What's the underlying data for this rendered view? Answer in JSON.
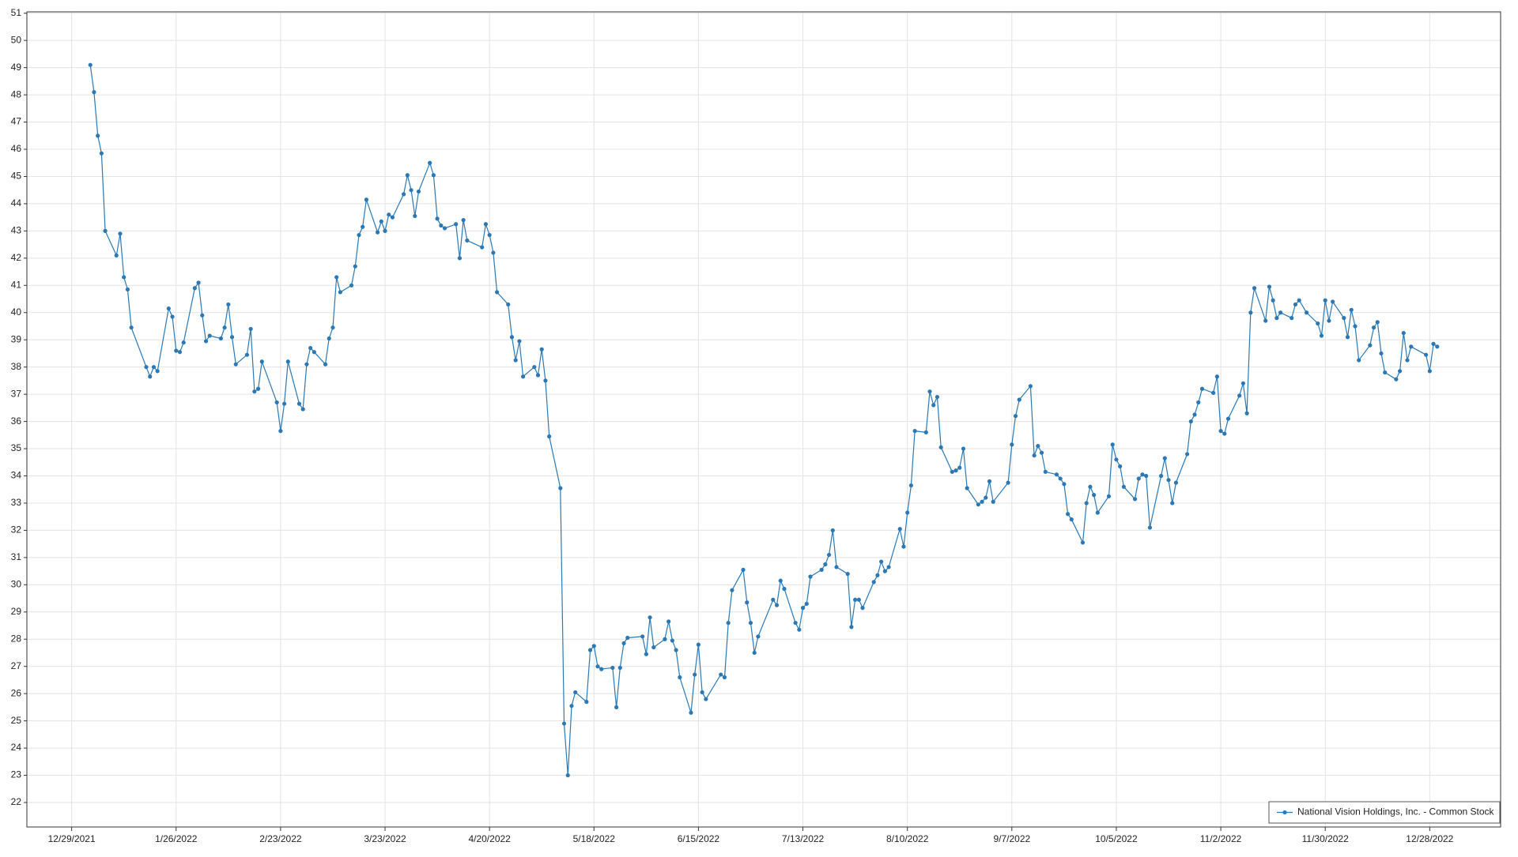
{
  "chart_data": {
    "type": "line",
    "x": [
      "1/3/2022",
      "1/4/2022",
      "1/5/2022",
      "1/6/2022",
      "1/7/2022",
      "1/10/2022",
      "1/11/2022",
      "1/12/2022",
      "1/13/2022",
      "1/14/2022",
      "1/18/2022",
      "1/19/2022",
      "1/20/2022",
      "1/21/2022",
      "1/24/2022",
      "1/25/2022",
      "1/26/2022",
      "1/27/2022",
      "1/28/2022",
      "1/31/2022",
      "2/1/2022",
      "2/2/2022",
      "2/3/2022",
      "2/4/2022",
      "2/7/2022",
      "2/8/2022",
      "2/9/2022",
      "2/10/2022",
      "2/11/2022",
      "2/14/2022",
      "2/15/2022",
      "2/16/2022",
      "2/17/2022",
      "2/18/2022",
      "2/22/2022",
      "2/23/2022",
      "2/24/2022",
      "2/25/2022",
      "2/28/2022",
      "3/1/2022",
      "3/2/2022",
      "3/3/2022",
      "3/4/2022",
      "3/7/2022",
      "3/8/2022",
      "3/9/2022",
      "3/10/2022",
      "3/11/2022",
      "3/14/2022",
      "3/15/2022",
      "3/16/2022",
      "3/17/2022",
      "3/18/2022",
      "3/21/2022",
      "3/22/2022",
      "3/23/2022",
      "3/24/2022",
      "3/25/2022",
      "3/28/2022",
      "3/29/2022",
      "3/30/2022",
      "3/31/2022",
      "4/1/2022",
      "4/4/2022",
      "4/5/2022",
      "4/6/2022",
      "4/7/2022",
      "4/8/2022",
      "4/11/2022",
      "4/12/2022",
      "4/13/2022",
      "4/14/2022",
      "4/18/2022",
      "4/19/2022",
      "4/20/2022",
      "4/21/2022",
      "4/22/2022",
      "4/25/2022",
      "4/26/2022",
      "4/27/2022",
      "4/28/2022",
      "4/29/2022",
      "5/2/2022",
      "5/3/2022",
      "5/4/2022",
      "5/5/2022",
      "5/6/2022",
      "5/9/2022",
      "5/10/2022",
      "5/11/2022",
      "5/12/2022",
      "5/13/2022",
      "5/16/2022",
      "5/17/2022",
      "5/18/2022",
      "5/19/2022",
      "5/20/2022",
      "5/23/2022",
      "5/24/2022",
      "5/25/2022",
      "5/26/2022",
      "5/27/2022",
      "5/31/2022",
      "6/1/2022",
      "6/2/2022",
      "6/3/2022",
      "6/6/2022",
      "6/7/2022",
      "6/8/2022",
      "6/9/2022",
      "6/10/2022",
      "6/13/2022",
      "6/14/2022",
      "6/15/2022",
      "6/16/2022",
      "6/17/2022",
      "6/21/2022",
      "6/22/2022",
      "6/23/2022",
      "6/24/2022",
      "6/27/2022",
      "6/28/2022",
      "6/29/2022",
      "6/30/2022",
      "7/1/2022",
      "7/5/2022",
      "7/6/2022",
      "7/7/2022",
      "7/8/2022",
      "7/11/2022",
      "7/12/2022",
      "7/13/2022",
      "7/14/2022",
      "7/15/2022",
      "7/18/2022",
      "7/19/2022",
      "7/20/2022",
      "7/21/2022",
      "7/22/2022",
      "7/25/2022",
      "7/26/2022",
      "7/27/2022",
      "7/28/2022",
      "7/29/2022",
      "8/1/2022",
      "8/2/2022",
      "8/3/2022",
      "8/4/2022",
      "8/5/2022",
      "8/8/2022",
      "8/9/2022",
      "8/10/2022",
      "8/11/2022",
      "8/12/2022",
      "8/15/2022",
      "8/16/2022",
      "8/17/2022",
      "8/18/2022",
      "8/19/2022",
      "8/22/2022",
      "8/23/2022",
      "8/24/2022",
      "8/25/2022",
      "8/26/2022",
      "8/29/2022",
      "8/30/2022",
      "8/31/2022",
      "9/1/2022",
      "9/2/2022",
      "9/6/2022",
      "9/7/2022",
      "9/8/2022",
      "9/9/2022",
      "9/12/2022",
      "9/13/2022",
      "9/14/2022",
      "9/15/2022",
      "9/16/2022",
      "9/19/2022",
      "9/20/2022",
      "9/21/2022",
      "9/22/2022",
      "9/23/2022",
      "9/26/2022",
      "9/27/2022",
      "9/28/2022",
      "9/29/2022",
      "9/30/2022",
      "10/3/2022",
      "10/4/2022",
      "10/5/2022",
      "10/6/2022",
      "10/7/2022",
      "10/10/2022",
      "10/11/2022",
      "10/12/2022",
      "10/13/2022",
      "10/14/2022",
      "10/17/2022",
      "10/18/2022",
      "10/19/2022",
      "10/20/2022",
      "10/21/2022",
      "10/24/2022",
      "10/25/2022",
      "10/26/2022",
      "10/27/2022",
      "10/28/2022",
      "10/31/2022",
      "11/1/2022",
      "11/2/2022",
      "11/3/2022",
      "11/4/2022",
      "11/7/2022",
      "11/8/2022",
      "11/9/2022",
      "11/10/2022",
      "11/11/2022",
      "11/14/2022",
      "11/15/2022",
      "11/16/2022",
      "11/17/2022",
      "11/18/2022",
      "11/21/2022",
      "11/22/2022",
      "11/23/2022",
      "11/25/2022",
      "11/28/2022",
      "11/29/2022",
      "11/30/2022",
      "12/1/2022",
      "12/2/2022",
      "12/5/2022",
      "12/6/2022",
      "12/7/2022",
      "12/8/2022",
      "12/9/2022",
      "12/12/2022",
      "12/13/2022",
      "12/14/2022",
      "12/15/2022",
      "12/16/2022",
      "12/19/2022",
      "12/20/2022",
      "12/21/2022",
      "12/22/2022",
      "12/23/2022",
      "12/27/2022",
      "12/28/2022",
      "12/29/2022",
      "12/30/2022"
    ],
    "series": [
      {
        "name": "National Vision Holdings, Inc. - Common Stock",
        "color": "#2b78b4",
        "values": [
          49.1,
          48.1,
          46.5,
          45.85,
          43.0,
          42.1,
          42.9,
          41.3,
          40.85,
          39.45,
          38.0,
          37.65,
          38.0,
          37.85,
          40.15,
          39.85,
          38.6,
          38.55,
          38.9,
          40.9,
          41.1,
          39.9,
          38.95,
          39.15,
          39.05,
          39.45,
          40.3,
          39.1,
          38.1,
          38.45,
          39.4,
          37.1,
          37.2,
          38.2,
          36.7,
          35.65,
          36.65,
          38.2,
          36.65,
          36.45,
          38.1,
          38.7,
          38.55,
          38.1,
          39.05,
          39.45,
          41.3,
          40.75,
          41.0,
          41.7,
          42.85,
          43.15,
          44.15,
          42.95,
          43.35,
          43.0,
          43.6,
          43.5,
          44.35,
          45.05,
          44.5,
          43.55,
          44.45,
          45.5,
          45.05,
          43.45,
          43.2,
          43.1,
          43.25,
          42.0,
          43.4,
          42.65,
          42.4,
          43.25,
          42.85,
          42.2,
          40.75,
          40.3,
          39.1,
          38.25,
          38.95,
          37.65,
          38.0,
          37.7,
          38.65,
          37.5,
          35.45,
          33.55,
          24.9,
          23.0,
          25.55,
          26.05,
          25.7,
          27.6,
          27.75,
          27.0,
          26.9,
          26.95,
          25.5,
          26.95,
          27.85,
          28.05,
          28.1,
          27.45,
          28.8,
          27.7,
          28.0,
          28.65,
          27.95,
          27.6,
          26.6,
          25.3,
          26.7,
          27.8,
          26.05,
          25.8,
          26.7,
          26.6,
          28.6,
          29.8,
          30.55,
          29.35,
          28.6,
          27.5,
          28.1,
          29.45,
          29.25,
          30.15,
          29.85,
          28.6,
          28.35,
          29.15,
          29.3,
          30.3,
          30.55,
          30.75,
          31.1,
          32.0,
          30.65,
          30.4,
          28.45,
          29.45,
          29.45,
          29.15,
          30.1,
          30.35,
          30.85,
          30.5,
          30.65,
          32.05,
          31.4,
          32.65,
          33.65,
          35.65,
          35.6,
          37.1,
          36.6,
          36.9,
          35.05,
          34.15,
          34.2,
          34.3,
          35.0,
          33.55,
          32.95,
          33.05,
          33.2,
          33.8,
          33.05,
          33.75,
          35.15,
          36.2,
          36.8,
          37.3,
          34.75,
          35.1,
          34.85,
          34.15,
          34.05,
          33.9,
          33.7,
          32.6,
          32.4,
          31.55,
          33.0,
          33.6,
          33.3,
          32.65,
          33.25,
          35.15,
          34.6,
          34.35,
          33.6,
          33.15,
          33.9,
          34.05,
          34.0,
          32.1,
          34.0,
          34.65,
          33.85,
          33.0,
          33.75,
          34.8,
          36.0,
          36.25,
          36.7,
          37.2,
          37.05,
          37.65,
          35.65,
          35.55,
          36.1,
          36.95,
          37.4,
          36.3,
          40.0,
          40.9,
          39.7,
          40.95,
          40.45,
          39.8,
          40.0,
          39.8,
          40.3,
          40.45,
          40.0,
          39.6,
          39.15,
          40.45,
          39.7,
          40.4,
          39.8,
          39.1,
          40.1,
          39.5,
          38.25,
          38.8,
          39.45,
          39.65,
          38.5,
          37.8,
          37.55,
          37.85,
          39.25,
          38.25,
          38.75,
          38.45,
          37.85,
          38.85,
          38.75
        ]
      }
    ],
    "xlim": [
      "12/17/2021",
      "1/16/2023"
    ],
    "xticks": [
      "12/29/2021",
      "1/26/2022",
      "2/23/2022",
      "3/23/2022",
      "4/20/2022",
      "5/18/2022",
      "6/15/2022",
      "7/13/2022",
      "8/10/2022",
      "9/7/2022",
      "10/5/2022",
      "11/2/2022",
      "11/30/2022",
      "12/28/2022"
    ],
    "ylim": [
      21.1,
      51.05
    ],
    "yticks": [
      22,
      23,
      24,
      25,
      26,
      27,
      28,
      29,
      30,
      31,
      32,
      33,
      34,
      35,
      36,
      37,
      38,
      39,
      40,
      41,
      42,
      43,
      44,
      45,
      46,
      47,
      48,
      49,
      50,
      51
    ],
    "grid": true,
    "legend": "bottom-right"
  }
}
